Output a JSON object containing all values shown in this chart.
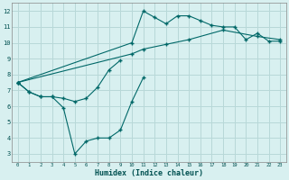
{
  "xlabel": "Humidex (Indice chaleur)",
  "bg_color": "#d8f0f0",
  "grid_color": "#b8d8d8",
  "line_color": "#006868",
  "xlim": [
    -0.5,
    23.5
  ],
  "ylim": [
    2.5,
    12.5
  ],
  "xticks": [
    0,
    1,
    2,
    3,
    4,
    5,
    6,
    7,
    8,
    9,
    10,
    11,
    12,
    13,
    14,
    15,
    16,
    17,
    18,
    19,
    20,
    21,
    22,
    23
  ],
  "yticks": [
    3,
    4,
    5,
    6,
    7,
    8,
    9,
    10,
    11,
    12
  ],
  "series": [
    [
      7.5,
      6.9,
      6.6,
      6.6,
      5.9,
      3.0,
      3.8,
      4.0,
      4.0,
      4.5,
      6.3,
      7.8,
      null,
      null,
      null,
      null,
      null,
      null,
      null,
      null,
      null,
      null,
      null,
      null
    ],
    [
      7.5,
      6.9,
      6.6,
      6.6,
      6.5,
      6.3,
      6.5,
      7.2,
      8.3,
      8.9,
      null,
      null,
      null,
      null,
      null,
      null,
      null,
      null,
      null,
      null,
      null,
      null,
      null,
      null
    ],
    [
      7.5,
      null,
      null,
      null,
      null,
      null,
      null,
      null,
      null,
      null,
      10.0,
      12.0,
      11.6,
      11.2,
      11.7,
      11.7,
      11.4,
      11.1,
      11.0,
      11.0,
      10.2,
      10.6,
      10.1,
      10.1
    ],
    [
      7.5,
      null,
      null,
      null,
      null,
      null,
      null,
      null,
      null,
      null,
      9.3,
      9.6,
      null,
      9.9,
      null,
      10.2,
      null,
      null,
      10.8,
      null,
      null,
      10.4,
      null,
      10.2
    ]
  ]
}
